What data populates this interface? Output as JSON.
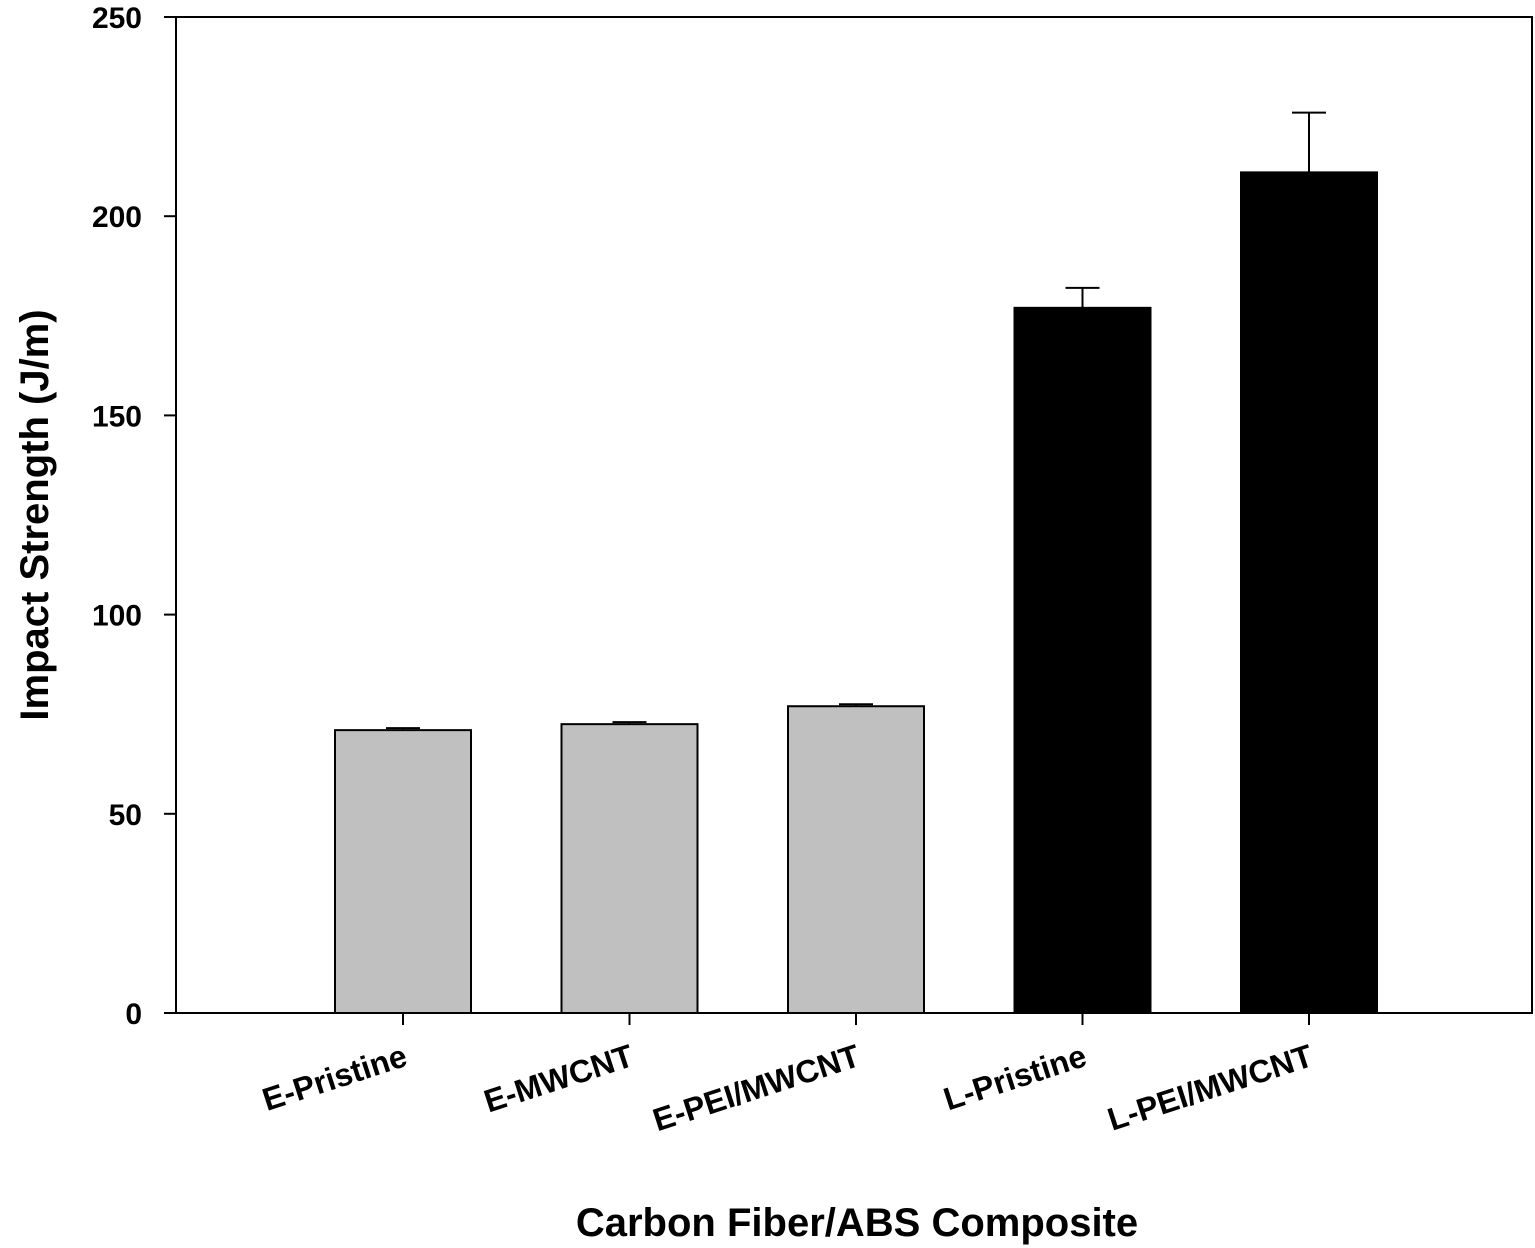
{
  "chart_data": {
    "type": "bar",
    "title": "",
    "xlabel": "Carbon Fiber/ABS Composite",
    "ylabel": "Impact Strength (J/m)",
    "ylim": [
      0,
      250
    ],
    "yticks": [
      0,
      50,
      100,
      150,
      200,
      250
    ],
    "grid": false,
    "categories": [
      "E-Pristine",
      "E-MWCNT",
      "E-PEI/MWCNT",
      "L-Pristine",
      "L-PEI/MWCNT"
    ],
    "values": [
      71,
      72.5,
      77,
      177,
      211
    ],
    "errors": [
      0.5,
      0.5,
      0.5,
      5,
      15
    ],
    "colors": [
      "#c0c0c0",
      "#c0c0c0",
      "#c0c0c0",
      "#000000",
      "#000000"
    ]
  }
}
